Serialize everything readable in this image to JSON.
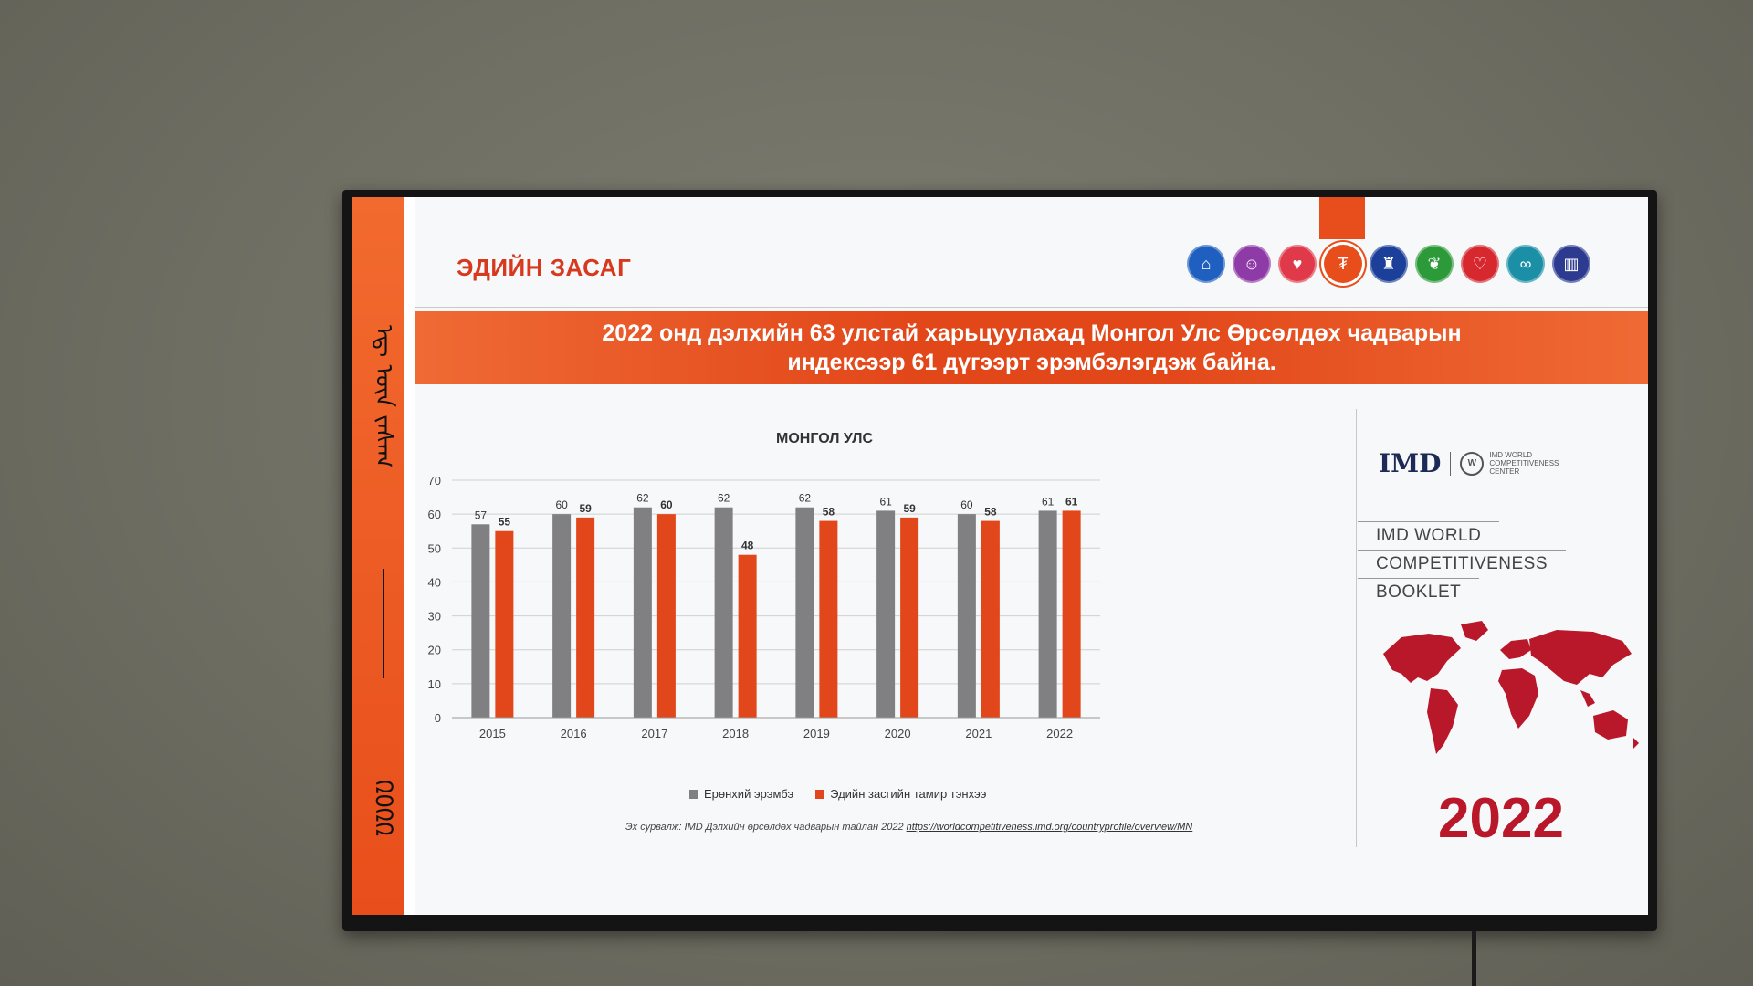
{
  "slide": {
    "header_title": "ЭДИЙН ЗАСАГ",
    "banner_text": "2022 онд дэлхийн 63 улстай харьцуулахад Монгол Улс Өрсөлдөх чадварын индексээр 61 дүгээрт эрэмбэлэгдэж байна.",
    "side_script_top": "ᠡᠳ᠋ ᠦᠨ ᠵᠠᠰᠠᠭ",
    "side_script_bottom": "᠒᠐᠒᠒",
    "category_icons": [
      {
        "name": "building-icon",
        "color": "#1f5fbf",
        "glyph": "⌂"
      },
      {
        "name": "head-idea-icon",
        "color": "#8e3aa7",
        "glyph": "☺"
      },
      {
        "name": "heart-hand-icon",
        "color": "#e03a4a",
        "glyph": "♥"
      },
      {
        "name": "economy-chart-icon",
        "color": "#e84e1b",
        "glyph": "₮"
      },
      {
        "name": "gov-building-icon",
        "color": "#1c3f9a",
        "glyph": "♜"
      },
      {
        "name": "leaf-icon",
        "color": "#2d9a3a",
        "glyph": "❦"
      },
      {
        "name": "shield-heart-icon",
        "color": "#d6282e",
        "glyph": "♡"
      },
      {
        "name": "handshake-icon",
        "color": "#1b8fa6",
        "glyph": "∞"
      },
      {
        "name": "city-icon",
        "color": "#2c3a8f",
        "glyph": "▥"
      }
    ]
  },
  "chart_data": {
    "type": "bar",
    "title": "МОНГОЛ УЛС",
    "categories": [
      "2015",
      "2016",
      "2017",
      "2018",
      "2019",
      "2020",
      "2021",
      "2022"
    ],
    "series": [
      {
        "name": "Ерөнхий эрэмбэ",
        "color": "#808083",
        "values": [
          57,
          60,
          62,
          62,
          62,
          61,
          60,
          61
        ]
      },
      {
        "name": "Эдийн засгийн тамир тэнхээ",
        "color": "#e2461b",
        "values": [
          55,
          59,
          60,
          48,
          58,
          59,
          58,
          61
        ]
      }
    ],
    "ylim": [
      0,
      70
    ],
    "yticks": [
      0,
      10,
      20,
      30,
      40,
      50,
      60,
      70
    ],
    "grid": true,
    "legend": "bottom"
  },
  "source": {
    "label": "Эх сурвалж: IMD Дэлхийн өрсөлдөх чадварын тайлан 2022 ",
    "url": "https://worldcompetitiveness.imd.org/countryprofile/overview/MN"
  },
  "right_panel": {
    "logo_text": "IMD",
    "center_text": "IMD WORLD COMPETITIVENESS CENTER",
    "booklet_lines": [
      "IMD WORLD",
      "COMPETITIVENESS",
      "BOOKLET"
    ],
    "year": "2022",
    "map_color": "#b8182a"
  }
}
